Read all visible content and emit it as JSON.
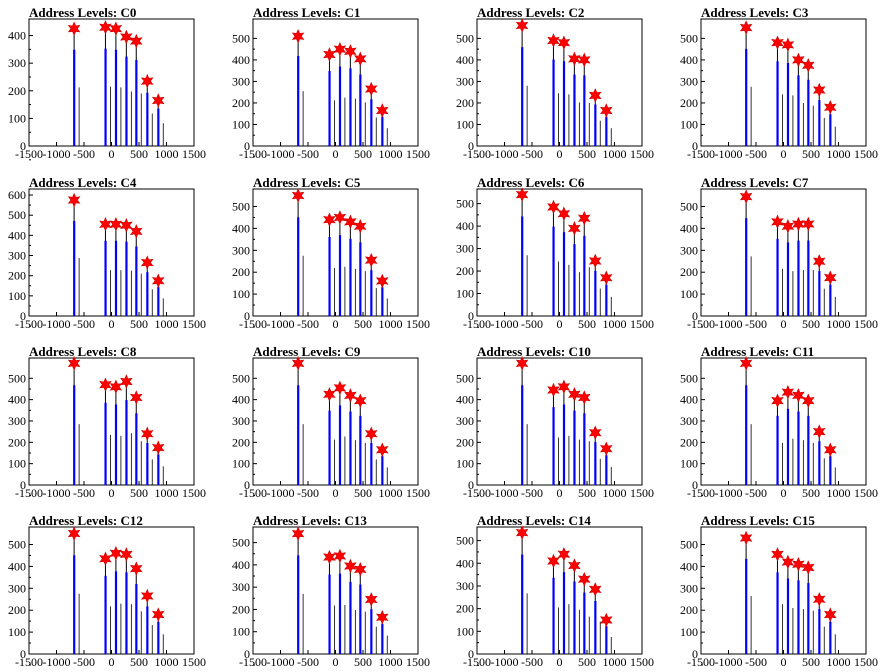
{
  "colors": {
    "bar": "#0000ff",
    "peak": "#ff0000",
    "axis": "#000000",
    "background": "#ffffff"
  },
  "chart_data": [
    {
      "type": "bar",
      "title": "Address Levels: C0",
      "xlim": [
        -1500,
        1500
      ],
      "ylim": [
        0,
        460
      ],
      "yticks": [
        0,
        100,
        200,
        300,
        400
      ],
      "xticks": [
        -1500,
        -1000,
        -500,
        0,
        500,
        1000,
        1500
      ],
      "xticklabels": [
        "-1500",
        "-1000",
        "-500",
        "0",
        "500",
        "1000",
        "1500"
      ],
      "peaks": [
        {
          "x": -680,
          "y": 425
        },
        {
          "x": -110,
          "y": 430
        },
        {
          "x": 80,
          "y": 425
        },
        {
          "x": 270,
          "y": 395
        },
        {
          "x": 450,
          "y": 380
        },
        {
          "x": 650,
          "y": 235
        },
        {
          "x": 850,
          "y": 165
        }
      ]
    },
    {
      "type": "bar",
      "title": "Address Levels: C1",
      "xlim": [
        -1500,
        1500
      ],
      "ylim": [
        0,
        590
      ],
      "yticks": [
        0,
        100,
        200,
        300,
        400,
        500
      ],
      "xticks": [
        -1500,
        -1000,
        -500,
        0,
        500,
        1000,
        1500
      ],
      "xticklabels": [
        "-1500",
        "-1000",
        "-500",
        "0",
        "500",
        "1000",
        "1500"
      ],
      "peaks": [
        {
          "x": -680,
          "y": 510
        },
        {
          "x": -110,
          "y": 425
        },
        {
          "x": 80,
          "y": 450
        },
        {
          "x": 270,
          "y": 440
        },
        {
          "x": 450,
          "y": 405
        },
        {
          "x": 650,
          "y": 265
        },
        {
          "x": 850,
          "y": 165
        }
      ]
    },
    {
      "type": "bar",
      "title": "Address Levels: C2",
      "xlim": [
        -1500,
        1500
      ],
      "ylim": [
        0,
        590
      ],
      "yticks": [
        0,
        100,
        200,
        300,
        400,
        500
      ],
      "xticks": [
        -1500,
        -1000,
        -500,
        0,
        500,
        1000,
        1500
      ],
      "xticklabels": [
        "-1500",
        "-1000",
        "-500",
        "0",
        "500",
        "1000",
        "1500"
      ],
      "peaks": [
        {
          "x": -680,
          "y": 560
        },
        {
          "x": -110,
          "y": 490
        },
        {
          "x": 80,
          "y": 480
        },
        {
          "x": 270,
          "y": 405
        },
        {
          "x": 450,
          "y": 400
        },
        {
          "x": 650,
          "y": 235
        },
        {
          "x": 850,
          "y": 165
        }
      ]
    },
    {
      "type": "bar",
      "title": "Address Levels: C3",
      "xlim": [
        -1500,
        1500
      ],
      "ylim": [
        0,
        590
      ],
      "yticks": [
        0,
        100,
        200,
        300,
        400,
        500
      ],
      "xticks": [
        -1500,
        -1000,
        -500,
        0,
        500,
        1000,
        1500
      ],
      "xticklabels": [
        "-1500",
        "-1000",
        "-500",
        "0",
        "500",
        "1000",
        "1500"
      ],
      "peaks": [
        {
          "x": -680,
          "y": 550
        },
        {
          "x": -110,
          "y": 480
        },
        {
          "x": 80,
          "y": 470
        },
        {
          "x": 270,
          "y": 400
        },
        {
          "x": 450,
          "y": 375
        },
        {
          "x": 650,
          "y": 260
        },
        {
          "x": 850,
          "y": 180
        }
      ]
    },
    {
      "type": "bar",
      "title": "Address Levels: C4",
      "xlim": [
        -1500,
        1500
      ],
      "ylim": [
        0,
        630
      ],
      "yticks": [
        0,
        100,
        200,
        300,
        400,
        500,
        600
      ],
      "xticks": [
        -1500,
        -1000,
        -500,
        0,
        500,
        1000,
        1500
      ],
      "xticklabels": [
        "-1500",
        "-1000",
        "-500",
        "0",
        "500",
        "1000",
        "1500"
      ],
      "peaks": [
        {
          "x": -680,
          "y": 575
        },
        {
          "x": -110,
          "y": 455
        },
        {
          "x": 80,
          "y": 455
        },
        {
          "x": 270,
          "y": 450
        },
        {
          "x": 450,
          "y": 420
        },
        {
          "x": 650,
          "y": 265
        },
        {
          "x": 850,
          "y": 175
        }
      ]
    },
    {
      "type": "bar",
      "title": "Address Levels: C5",
      "xlim": [
        -1500,
        1500
      ],
      "ylim": [
        0,
        580
      ],
      "yticks": [
        0,
        100,
        200,
        300,
        400,
        500
      ],
      "xticks": [
        -1500,
        -1000,
        -500,
        0,
        500,
        1000,
        1500
      ],
      "xticklabels": [
        "-1500",
        "-1000",
        "-500",
        "0",
        "500",
        "1000",
        "1500"
      ],
      "peaks": [
        {
          "x": -680,
          "y": 550
        },
        {
          "x": -110,
          "y": 440
        },
        {
          "x": 80,
          "y": 450
        },
        {
          "x": 270,
          "y": 430
        },
        {
          "x": 450,
          "y": 410
        },
        {
          "x": 650,
          "y": 255
        },
        {
          "x": 850,
          "y": 160
        }
      ]
    },
    {
      "type": "bar",
      "title": "Address Levels: C6",
      "xlim": [
        -1500,
        1500
      ],
      "ylim": [
        0,
        565
      ],
      "yticks": [
        0,
        100,
        200,
        300,
        400,
        500
      ],
      "xticks": [
        -1500,
        -1000,
        -500,
        0,
        500,
        1000,
        1500
      ],
      "xticklabels": [
        "-1500",
        "-1000",
        "-500",
        "0",
        "500",
        "1000",
        "1500"
      ],
      "peaks": [
        {
          "x": -680,
          "y": 540
        },
        {
          "x": -110,
          "y": 485
        },
        {
          "x": 80,
          "y": 455
        },
        {
          "x": 270,
          "y": 390
        },
        {
          "x": 450,
          "y": 435
        },
        {
          "x": 650,
          "y": 245
        },
        {
          "x": 850,
          "y": 170
        }
      ]
    },
    {
      "type": "bar",
      "title": "Address Levels: C7",
      "xlim": [
        -1500,
        1500
      ],
      "ylim": [
        0,
        580
      ],
      "yticks": [
        0,
        100,
        200,
        300,
        400,
        500
      ],
      "xticks": [
        -1500,
        -1000,
        -500,
        0,
        500,
        1000,
        1500
      ],
      "xticklabels": [
        "-1500",
        "-1000",
        "-500",
        "0",
        "500",
        "1000",
        "1500"
      ],
      "peaks": [
        {
          "x": -680,
          "y": 545
        },
        {
          "x": -110,
          "y": 430
        },
        {
          "x": 80,
          "y": 410
        },
        {
          "x": 270,
          "y": 420
        },
        {
          "x": 450,
          "y": 420
        },
        {
          "x": 650,
          "y": 250
        },
        {
          "x": 850,
          "y": 175
        }
      ]
    },
    {
      "type": "bar",
      "title": "Address Levels: C8",
      "xlim": [
        -1500,
        1500
      ],
      "ylim": [
        0,
        595
      ],
      "yticks": [
        0,
        100,
        200,
        300,
        400,
        500
      ],
      "xticks": [
        -1500,
        -1000,
        -500,
        0,
        500,
        1000,
        1500
      ],
      "xticklabels": [
        "-1500",
        "-1000",
        "-500",
        "0",
        "500",
        "1000",
        "1500"
      ],
      "peaks": [
        {
          "x": -680,
          "y": 570
        },
        {
          "x": -110,
          "y": 470
        },
        {
          "x": 80,
          "y": 460
        },
        {
          "x": 270,
          "y": 485
        },
        {
          "x": 450,
          "y": 410
        },
        {
          "x": 650,
          "y": 240
        },
        {
          "x": 850,
          "y": 175
        }
      ]
    },
    {
      "type": "bar",
      "title": "Address Levels: C9",
      "xlim": [
        -1500,
        1500
      ],
      "ylim": [
        0,
        595
      ],
      "yticks": [
        0,
        100,
        200,
        300,
        400,
        500
      ],
      "xticks": [
        -1500,
        -1000,
        -500,
        0,
        500,
        1000,
        1500
      ],
      "xticklabels": [
        "-1500",
        "-1000",
        "-500",
        "0",
        "500",
        "1000",
        "1500"
      ],
      "peaks": [
        {
          "x": -680,
          "y": 570
        },
        {
          "x": -110,
          "y": 425
        },
        {
          "x": 80,
          "y": 455
        },
        {
          "x": 270,
          "y": 420
        },
        {
          "x": 450,
          "y": 395
        },
        {
          "x": 650,
          "y": 240
        },
        {
          "x": 850,
          "y": 165
        }
      ]
    },
    {
      "type": "bar",
      "title": "Address Levels: C10",
      "xlim": [
        -1500,
        1500
      ],
      "ylim": [
        0,
        595
      ],
      "yticks": [
        0,
        100,
        200,
        300,
        400,
        500
      ],
      "xticks": [
        -1500,
        -1000,
        -500,
        0,
        500,
        1000,
        1500
      ],
      "xticklabels": [
        "-1500",
        "-1000",
        "-500",
        "0",
        "500",
        "1000",
        "1500"
      ],
      "peaks": [
        {
          "x": -680,
          "y": 570
        },
        {
          "x": -110,
          "y": 445
        },
        {
          "x": 80,
          "y": 460
        },
        {
          "x": 270,
          "y": 425
        },
        {
          "x": 450,
          "y": 410
        },
        {
          "x": 650,
          "y": 245
        },
        {
          "x": 850,
          "y": 170
        }
      ]
    },
    {
      "type": "bar",
      "title": "Address Levels: C11",
      "xlim": [
        -1500,
        1500
      ],
      "ylim": [
        0,
        595
      ],
      "yticks": [
        0,
        100,
        200,
        300,
        400,
        500
      ],
      "xticks": [
        -1500,
        -1000,
        -500,
        0,
        500,
        1000,
        1500
      ],
      "xticklabels": [
        "-1500",
        "-1000",
        "-500",
        "0",
        "500",
        "1000",
        "1500"
      ],
      "peaks": [
        {
          "x": -680,
          "y": 570
        },
        {
          "x": -110,
          "y": 395
        },
        {
          "x": 80,
          "y": 435
        },
        {
          "x": 270,
          "y": 420
        },
        {
          "x": 450,
          "y": 395
        },
        {
          "x": 650,
          "y": 250
        },
        {
          "x": 850,
          "y": 165
        }
      ]
    },
    {
      "type": "bar",
      "title": "Address Levels: C12",
      "xlim": [
        -1500,
        1500
      ],
      "ylim": [
        0,
        580
      ],
      "yticks": [
        0,
        100,
        200,
        300,
        400,
        500
      ],
      "xticks": [
        -1500,
        -1000,
        -500,
        0,
        500,
        1000,
        1500
      ],
      "xticklabels": [
        "-1500",
        "-1000",
        "-500",
        "0",
        "500",
        "1000",
        "1500"
      ],
      "peaks": [
        {
          "x": -680,
          "y": 550
        },
        {
          "x": -110,
          "y": 435
        },
        {
          "x": 80,
          "y": 460
        },
        {
          "x": 270,
          "y": 455
        },
        {
          "x": 450,
          "y": 390
        },
        {
          "x": 650,
          "y": 265
        },
        {
          "x": 850,
          "y": 180
        }
      ]
    },
    {
      "type": "bar",
      "title": "Address Levels: C13",
      "xlim": [
        -1500,
        1500
      ],
      "ylim": [
        0,
        570
      ],
      "yticks": [
        0,
        100,
        200,
        300,
        400,
        500
      ],
      "xticks": [
        -1500,
        -1000,
        -500,
        0,
        500,
        1000,
        1500
      ],
      "xticklabels": [
        "-1500",
        "-1000",
        "-500",
        "0",
        "500",
        "1000",
        "1500"
      ],
      "peaks": [
        {
          "x": -680,
          "y": 540
        },
        {
          "x": -110,
          "y": 435
        },
        {
          "x": 80,
          "y": 440
        },
        {
          "x": 270,
          "y": 395
        },
        {
          "x": 450,
          "y": 380
        },
        {
          "x": 650,
          "y": 245
        },
        {
          "x": 850,
          "y": 165
        }
      ]
    },
    {
      "type": "bar",
      "title": "Address Levels: C14",
      "xlim": [
        -1500,
        1500
      ],
      "ylim": [
        0,
        560
      ],
      "yticks": [
        0,
        100,
        200,
        300,
        400,
        500
      ],
      "xticks": [
        -1500,
        -1000,
        -500,
        0,
        500,
        1000,
        1500
      ],
      "xticklabels": [
        "-1500",
        "-1000",
        "-500",
        "0",
        "500",
        "1000",
        "1500"
      ],
      "peaks": [
        {
          "x": -680,
          "y": 535
        },
        {
          "x": -110,
          "y": 410
        },
        {
          "x": 80,
          "y": 440
        },
        {
          "x": 270,
          "y": 390
        },
        {
          "x": 450,
          "y": 330
        },
        {
          "x": 650,
          "y": 285
        },
        {
          "x": 850,
          "y": 150
        }
      ]
    },
    {
      "type": "bar",
      "title": "Address Levels: C15",
      "xlim": [
        -1500,
        1500
      ],
      "ylim": [
        0,
        580
      ],
      "yticks": [
        0,
        100,
        200,
        300,
        400,
        500
      ],
      "xticks": [
        -1500,
        -1000,
        -500,
        0,
        500,
        1000,
        1500
      ],
      "xticklabels": [
        "-1500",
        "-1000",
        "-500",
        "0",
        "500",
        "1000",
        "1500"
      ],
      "peaks": [
        {
          "x": -680,
          "y": 530
        },
        {
          "x": -110,
          "y": 455
        },
        {
          "x": 80,
          "y": 420
        },
        {
          "x": 270,
          "y": 410
        },
        {
          "x": 450,
          "y": 395
        },
        {
          "x": 650,
          "y": 250
        },
        {
          "x": 850,
          "y": 180
        }
      ]
    }
  ]
}
